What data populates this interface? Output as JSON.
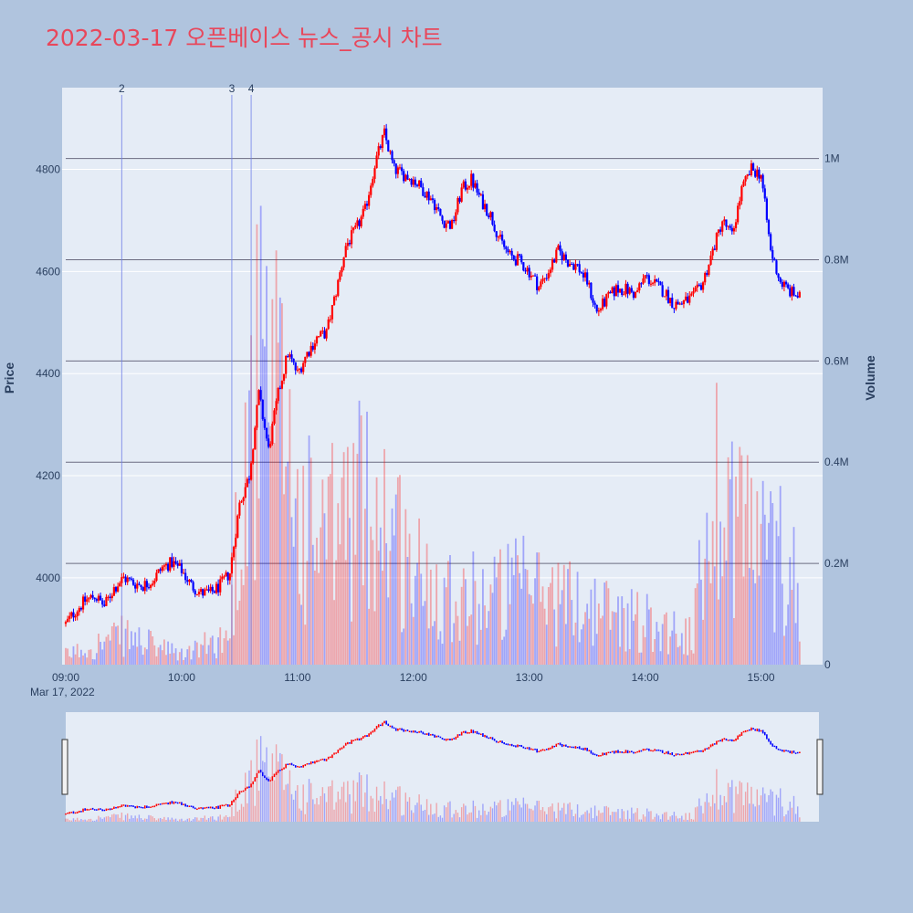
{
  "chart_data": {
    "type": "candlestick",
    "title": "2022-03-17 오픈베이스 뉴스_공시 차트",
    "ylabel": "Price",
    "y2label": "Volume",
    "date_label": "Mar 17, 2022",
    "xlim": [
      "09:00",
      "15:30"
    ],
    "x_ticks": [
      "09:00",
      "10:00",
      "11:00",
      "12:00",
      "13:00",
      "14:00",
      "15:00"
    ],
    "ylim": [
      3830,
      4960
    ],
    "y_ticks": [
      4000,
      4200,
      4400,
      4600,
      4800
    ],
    "y2lim": [
      0,
      1140000
    ],
    "y2_ticks": [
      {
        "value": 0,
        "label": "0"
      },
      {
        "value": 200000,
        "label": "0.2M"
      },
      {
        "value": 400000,
        "label": "0.4M"
      },
      {
        "value": 600000,
        "label": "0.6M"
      },
      {
        "value": 800000,
        "label": "0.8M"
      },
      {
        "value": 1000000,
        "label": "1M"
      }
    ],
    "news_markers": [
      {
        "label": "2",
        "time": "09:29"
      },
      {
        "label": "3",
        "time": "10:26"
      },
      {
        "label": "4",
        "time": "10:36"
      }
    ],
    "up_color": "#ff0000",
    "down_color": "#0000ff",
    "price_path": [
      [
        "09:00",
        3910
      ],
      [
        "09:05",
        3935
      ],
      [
        "09:10",
        3955
      ],
      [
        "09:15",
        3965
      ],
      [
        "09:20",
        3945
      ],
      [
        "09:25",
        3980
      ],
      [
        "09:30",
        4000
      ],
      [
        "09:35",
        3990
      ],
      [
        "09:40",
        3985
      ],
      [
        "09:45",
        3995
      ],
      [
        "09:50",
        4020
      ],
      [
        "09:55",
        4030
      ],
      [
        "10:00",
        4015
      ],
      [
        "10:05",
        3985
      ],
      [
        "10:10",
        3970
      ],
      [
        "10:15",
        3970
      ],
      [
        "10:20",
        3985
      ],
      [
        "10:25",
        4010
      ],
      [
        "10:30",
        4145
      ],
      [
        "10:35",
        4200
      ],
      [
        "10:40",
        4360
      ],
      [
        "10:45",
        4250
      ],
      [
        "10:50",
        4360
      ],
      [
        "10:55",
        4440
      ],
      [
        "11:00",
        4400
      ],
      [
        "11:05",
        4440
      ],
      [
        "11:10",
        4470
      ],
      [
        "11:15",
        4480
      ],
      [
        "11:20",
        4560
      ],
      [
        "11:25",
        4650
      ],
      [
        "11:30",
        4680
      ],
      [
        "11:35",
        4720
      ],
      [
        "11:40",
        4810
      ],
      [
        "11:45",
        4870
      ],
      [
        "11:50",
        4800
      ],
      [
        "11:55",
        4790
      ],
      [
        "12:00",
        4780
      ],
      [
        "12:05",
        4760
      ],
      [
        "12:10",
        4740
      ],
      [
        "12:15",
        4700
      ],
      [
        "12:20",
        4690
      ],
      [
        "12:25",
        4760
      ],
      [
        "12:30",
        4780
      ],
      [
        "12:35",
        4740
      ],
      [
        "12:40",
        4710
      ],
      [
        "12:45",
        4660
      ],
      [
        "12:50",
        4630
      ],
      [
        "12:55",
        4620
      ],
      [
        "13:00",
        4600
      ],
      [
        "13:05",
        4570
      ],
      [
        "13:10",
        4600
      ],
      [
        "13:15",
        4640
      ],
      [
        "13:20",
        4620
      ],
      [
        "13:25",
        4610
      ],
      [
        "13:30",
        4580
      ],
      [
        "13:35",
        4520
      ],
      [
        "13:40",
        4545
      ],
      [
        "13:45",
        4565
      ],
      [
        "13:50",
        4565
      ],
      [
        "13:55",
        4555
      ],
      [
        "14:00",
        4590
      ],
      [
        "14:05",
        4575
      ],
      [
        "14:10",
        4560
      ],
      [
        "14:15",
        4535
      ],
      [
        "14:20",
        4540
      ],
      [
        "14:25",
        4550
      ],
      [
        "14:30",
        4580
      ],
      [
        "14:35",
        4640
      ],
      [
        "14:40",
        4700
      ],
      [
        "14:45",
        4670
      ],
      [
        "14:50",
        4760
      ],
      [
        "14:55",
        4800
      ],
      [
        "15:00",
        4790
      ],
      [
        "15:05",
        4640
      ],
      [
        "15:10",
        4580
      ],
      [
        "15:15",
        4560
      ],
      [
        "15:20",
        4550
      ]
    ],
    "volume_profile": [
      [
        "09:00",
        20000
      ],
      [
        "09:30",
        60000
      ],
      [
        "10:00",
        20000
      ],
      [
        "10:25",
        60000
      ],
      [
        "10:30",
        350000
      ],
      [
        "10:40",
        580000
      ],
      [
        "10:45",
        520000
      ],
      [
        "10:55",
        500000
      ],
      [
        "11:00",
        300000
      ],
      [
        "11:15",
        250000
      ],
      [
        "11:30",
        330000
      ],
      [
        "11:45",
        320000
      ],
      [
        "12:00",
        190000
      ],
      [
        "12:30",
        140000
      ],
      [
        "13:00",
        160000
      ],
      [
        "13:30",
        120000
      ],
      [
        "14:00",
        90000
      ],
      [
        "14:25",
        60000
      ],
      [
        "14:35",
        380000
      ],
      [
        "14:50",
        320000
      ],
      [
        "15:00",
        240000
      ],
      [
        "15:10",
        230000
      ],
      [
        "15:20",
        180000
      ]
    ]
  }
}
